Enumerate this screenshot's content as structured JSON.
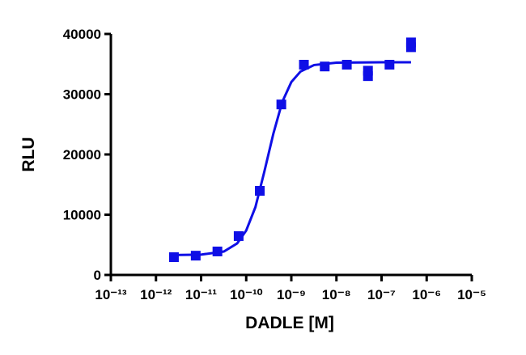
{
  "chart_data": {
    "type": "scatter",
    "xlabel": "DADLE [M]",
    "ylabel": "RLU",
    "xscale": "log",
    "xlim": [
      1e-13,
      1e-05
    ],
    "xticks": [
      {
        "value": 1e-13,
        "label": "10⁻¹³"
      },
      {
        "value": 1e-12,
        "label": "10⁻¹²"
      },
      {
        "value": 1e-11,
        "label": "10⁻¹¹"
      },
      {
        "value": 1e-10,
        "label": "10⁻¹⁰"
      },
      {
        "value": 1e-09,
        "label": "10⁻⁹"
      },
      {
        "value": 1e-08,
        "label": "10⁻⁸"
      },
      {
        "value": 1e-07,
        "label": "10⁻⁷"
      },
      {
        "value": 1e-06,
        "label": "10⁻⁶"
      },
      {
        "value": 1e-05,
        "label": "10⁻⁵"
      }
    ],
    "ylim": [
      0,
      40000
    ],
    "yticks": [
      0,
      10000,
      20000,
      30000,
      40000
    ],
    "series": [
      {
        "type": "scatter",
        "color": "#0f0fe6",
        "x": [
          2.5e-12,
          7.6e-12,
          2.3e-11,
          6.8e-11,
          2e-10,
          6e-10,
          1.9e-09,
          5.5e-09,
          1.7e-08,
          5e-08,
          5e-08,
          1.5e-07,
          4.5e-07,
          4.5e-07
        ],
        "values": [
          2950,
          3200,
          3900,
          6450,
          13960,
          28300,
          34900,
          34600,
          34900,
          33000,
          33900,
          34900,
          37800,
          38600
        ]
      },
      {
        "type": "line",
        "color": "#0f0fe6",
        "x": [
          2.5e-12,
          1e-11,
          3.2e-11,
          6.3e-11,
          1e-10,
          1.6e-10,
          2.5e-10,
          4e-10,
          6.3e-10,
          1e-09,
          1.6e-09,
          3.2e-09,
          1e-08,
          1e-07,
          4.5e-07
        ],
        "values": [
          3310,
          3380,
          3890,
          5230,
          7370,
          11260,
          17030,
          23460,
          28720,
          32020,
          33770,
          34840,
          35240,
          35300,
          35300
        ]
      }
    ]
  }
}
